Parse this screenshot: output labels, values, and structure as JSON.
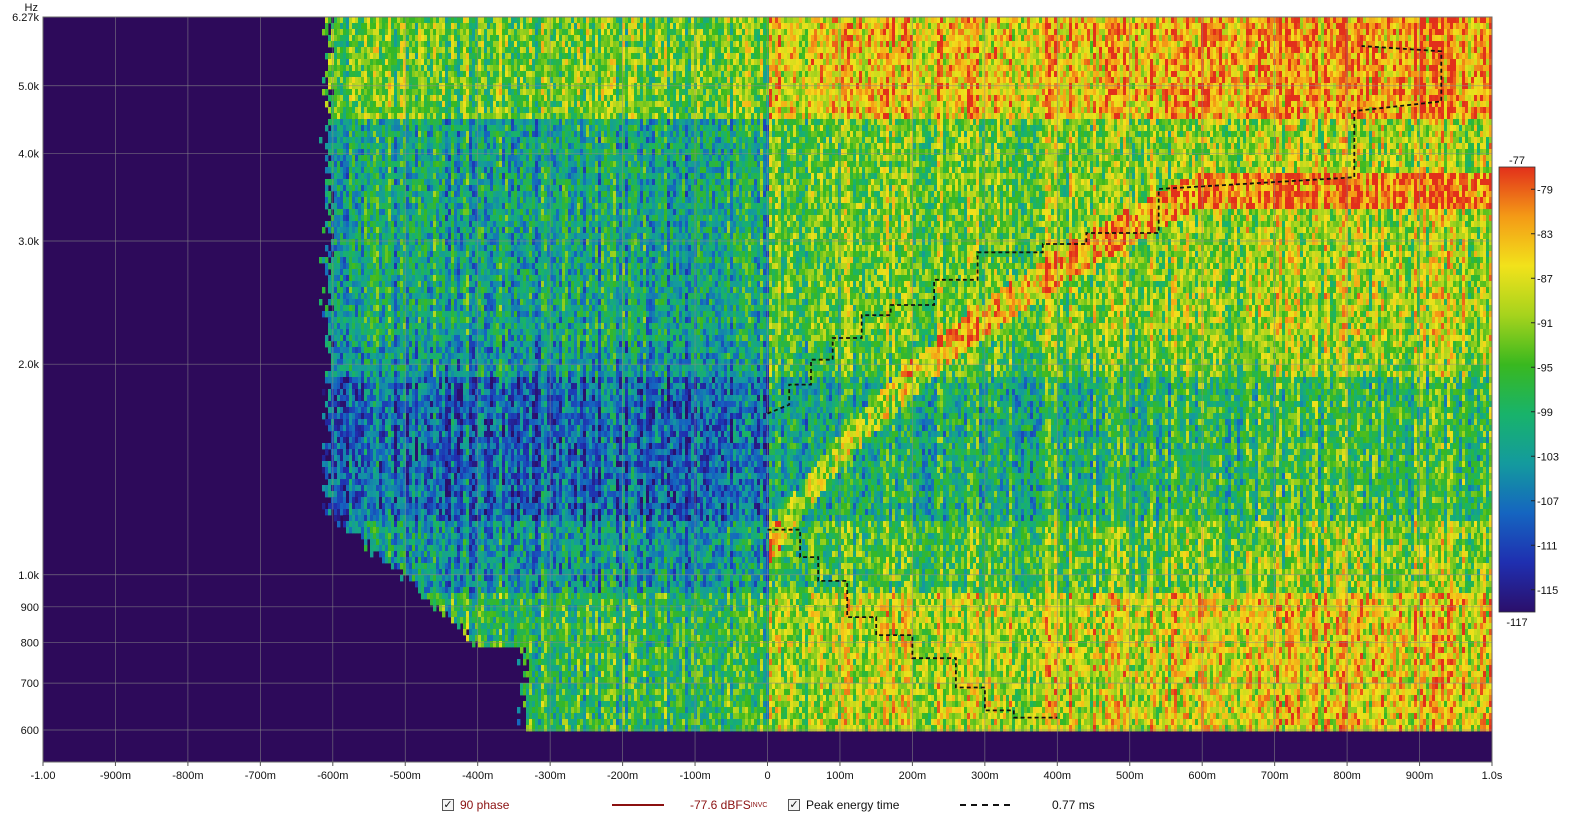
{
  "chart_data": {
    "type": "heatmap",
    "title": "",
    "xlabel": "s",
    "ylabel": "Hz",
    "x_scale": "linear",
    "y_scale": "log",
    "xlim": [
      -1.0,
      1.0
    ],
    "ylim": [
      540,
      6270
    ],
    "data_freq_range": [
      600,
      6270
    ],
    "x_ticks": [
      -1.0,
      -0.9,
      -0.8,
      -0.7,
      -0.6,
      -0.5,
      -0.4,
      -0.3,
      -0.2,
      -0.1,
      0,
      0.1,
      0.2,
      0.3,
      0.4,
      0.5,
      0.6,
      0.7,
      0.8,
      0.9,
      1.0
    ],
    "x_tick_labels": [
      "-1.00",
      "-900m",
      "-800m",
      "-700m",
      "-600m",
      "-500m",
      "-400m",
      "-300m",
      "-200m",
      "-100m",
      "0",
      "100m",
      "200m",
      "300m",
      "400m",
      "500m",
      "600m",
      "700m",
      "800m",
      "900m",
      "1.0s"
    ],
    "y_ticks": [
      6270,
      5000,
      4000,
      3000,
      2000,
      1000,
      900,
      800,
      700,
      600
    ],
    "y_tick_labels": [
      "6.27k",
      "5.0k",
      "4.0k",
      "3.0k",
      "2.0k",
      "1.0k",
      "900",
      "800",
      "700",
      "600"
    ],
    "y_unit_label": "Hz",
    "grid": true,
    "colorbar": {
      "min": -117,
      "max": -77,
      "ticks": [
        -79,
        -83,
        -87,
        -91,
        -95,
        -99,
        -103,
        -107,
        -111,
        -115
      ],
      "top_label": "-77",
      "bottom_label": "-117",
      "colors": [
        "#2b0f6b",
        "#1f2fb0",
        "#1565c0",
        "#149a9e",
        "#18b36b",
        "#39b81f",
        "#a6d31d",
        "#f2e21b",
        "#f49a16",
        "#e2301b"
      ]
    },
    "background_color": "#2d0a5a",
    "peak_energy_time": {
      "name": "Peak energy time",
      "style": "dashed",
      "color": "#111111",
      "points": [
        [
          0.0,
          1160
        ],
        [
          0.045,
          1160
        ],
        [
          0.045,
          1060
        ],
        [
          0.07,
          1060
        ],
        [
          0.07,
          980
        ],
        [
          0.11,
          980
        ],
        [
          0.11,
          870
        ],
        [
          0.15,
          870
        ],
        [
          0.15,
          820
        ],
        [
          0.2,
          820
        ],
        [
          0.2,
          760
        ],
        [
          0.26,
          760
        ],
        [
          0.26,
          690
        ],
        [
          0.3,
          690
        ],
        [
          0.3,
          640
        ],
        [
          0.34,
          640
        ],
        [
          0.34,
          625
        ],
        [
          0.4,
          625
        ],
        [
          0.0,
          1700
        ],
        [
          0.03,
          1750
        ],
        [
          0.03,
          1870
        ],
        [
          0.06,
          1870
        ],
        [
          0.06,
          2030
        ],
        [
          0.09,
          2030
        ],
        [
          0.09,
          2180
        ],
        [
          0.13,
          2180
        ],
        [
          0.13,
          2350
        ],
        [
          0.17,
          2350
        ],
        [
          0.17,
          2430
        ],
        [
          0.23,
          2430
        ],
        [
          0.23,
          2640
        ],
        [
          0.29,
          2640
        ],
        [
          0.29,
          2890
        ],
        [
          0.38,
          2890
        ],
        [
          0.38,
          2970
        ],
        [
          0.44,
          2970
        ],
        [
          0.44,
          3080
        ],
        [
          0.54,
          3080
        ],
        [
          0.54,
          3560
        ],
        [
          0.81,
          3700
        ],
        [
          0.81,
          4600
        ],
        [
          0.93,
          4750
        ],
        [
          0.93,
          5600
        ],
        [
          0.82,
          5700
        ]
      ]
    },
    "legend": [
      {
        "checked": true,
        "label": "90 phase"
      },
      {
        "line_color": "#8b1010",
        "label": "-77.6 dBFS",
        "superscript": "INVC"
      },
      {
        "checked": true,
        "label": "Peak energy time"
      },
      {
        "line_style": "dashed",
        "label": "0.77 ms"
      }
    ]
  }
}
